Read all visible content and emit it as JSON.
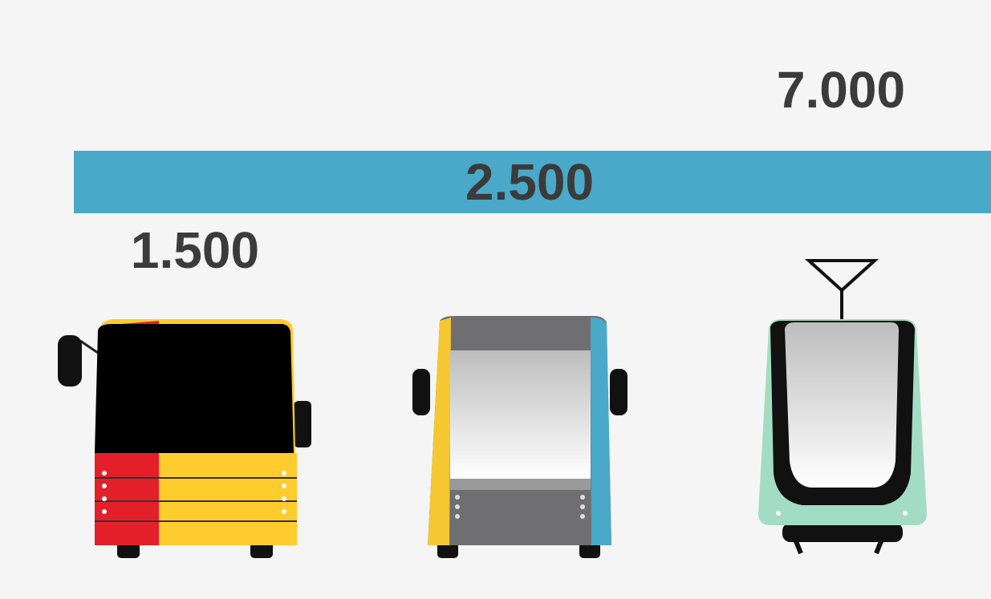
{
  "items": [
    {
      "label": "1.500"
    },
    {
      "label": "2.500"
    },
    {
      "label": "7.000"
    }
  ]
}
